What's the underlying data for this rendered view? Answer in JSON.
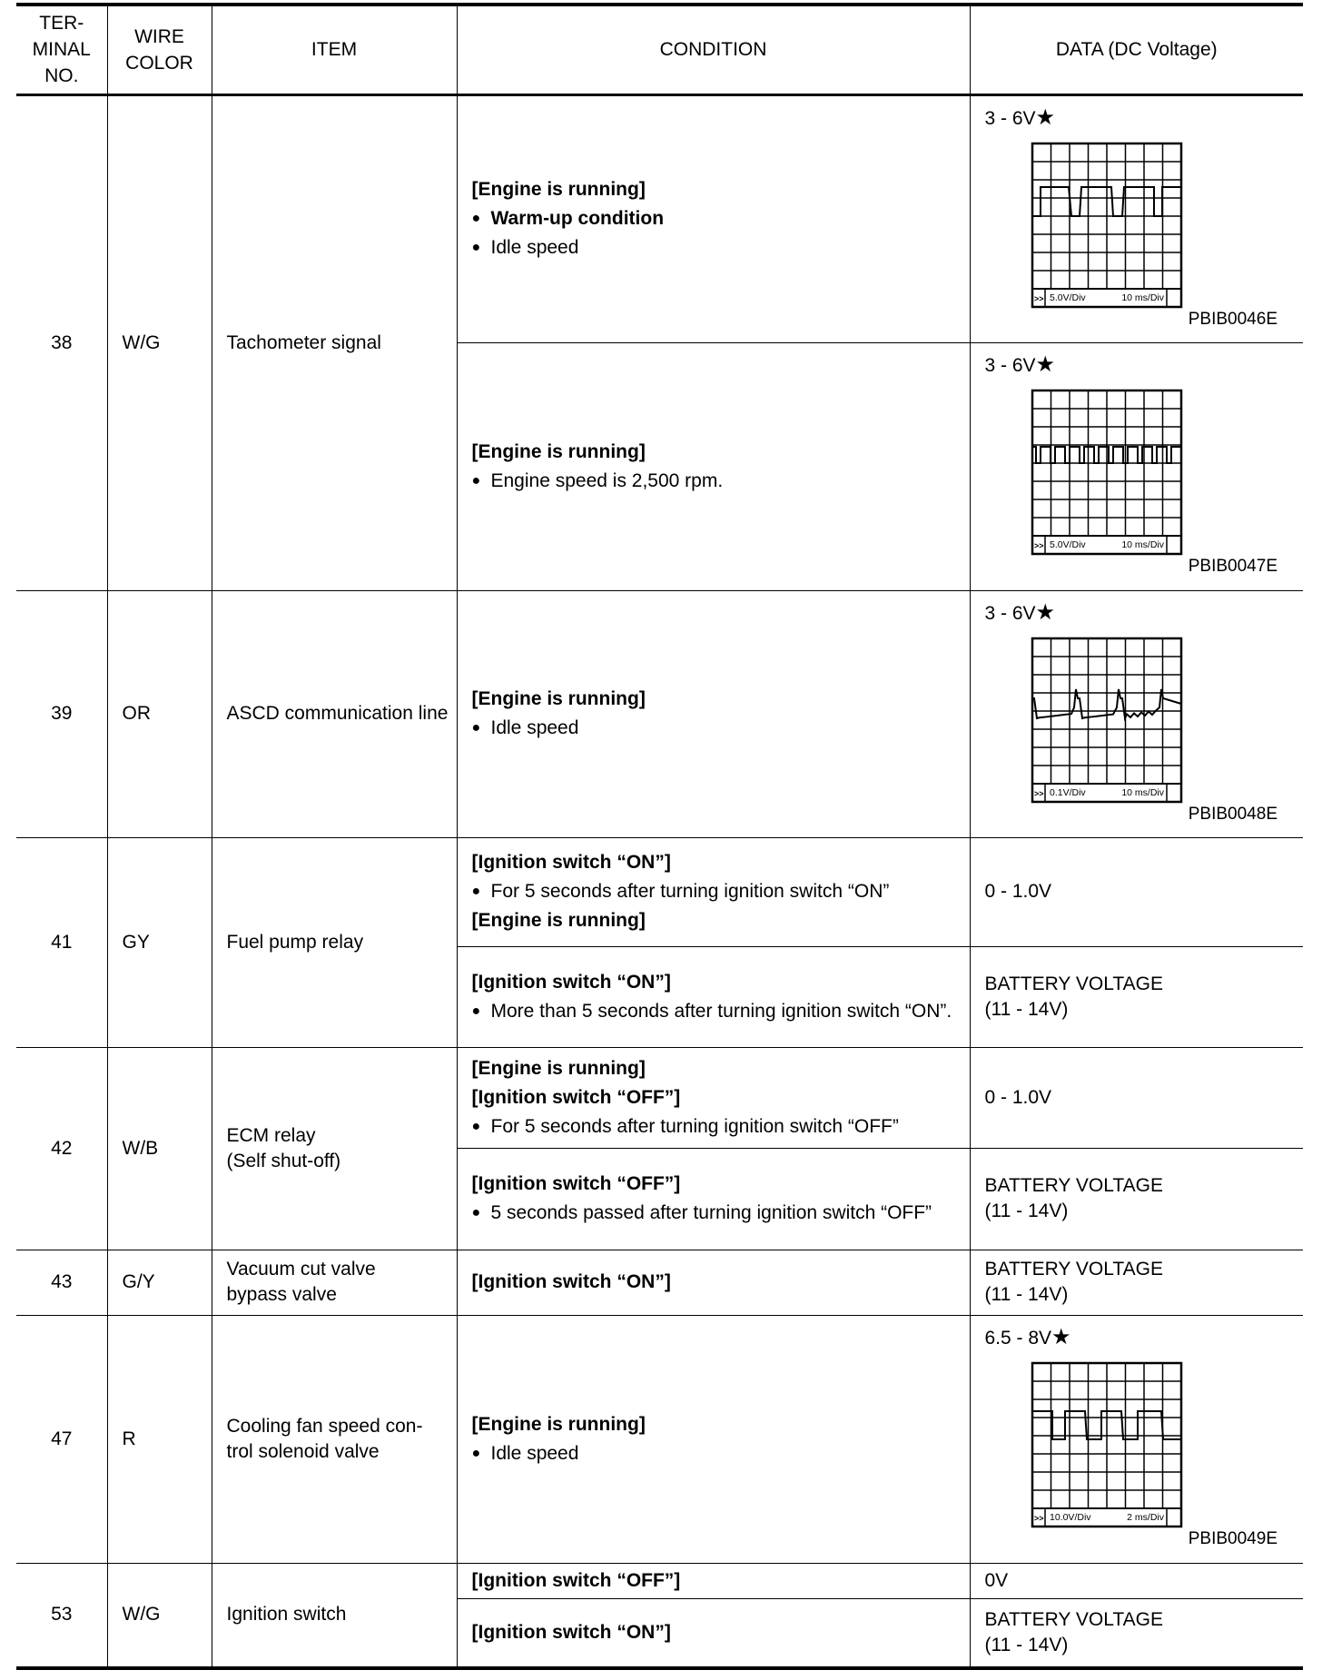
{
  "header": {
    "terminal": [
      "TER-",
      "MINAL",
      "NO."
    ],
    "wire": [
      "WIRE",
      "COLOR"
    ],
    "item": "ITEM",
    "condition": "CONDITION",
    "data": "DATA (DC Voltage)"
  },
  "rows": [
    {
      "terminal": "38",
      "wire": "W/G",
      "item": "Tachometer signal",
      "sub": [
        {
          "cond": [
            {
              "t": "h",
              "text": "[Engine is running]"
            },
            {
              "t": "bb",
              "text": "Warm-up condition"
            },
            {
              "t": "b",
              "text": "Idle speed"
            }
          ],
          "data": "3 - 6V",
          "star": "★",
          "scope": {
            "volt": "5.0V/Div",
            "time": "10 ms/Div",
            "code": "PBIB0046E",
            "wave": "square-slow"
          }
        },
        {
          "cond": [
            {
              "t": "h",
              "text": "[Engine is running]"
            },
            {
              "t": "b",
              "text": "Engine speed is 2,500 rpm."
            }
          ],
          "data": "3 - 6V",
          "star": "★",
          "scope": {
            "volt": "5.0V/Div",
            "time": "10 ms/Div",
            "code": "PBIB0047E",
            "wave": "square-fast"
          }
        }
      ]
    },
    {
      "terminal": "39",
      "wire": "OR",
      "item": "ASCD communication line",
      "sub": [
        {
          "cond": [
            {
              "t": "h",
              "text": "[Engine is running]"
            },
            {
              "t": "b",
              "text": "Idle speed"
            }
          ],
          "data": "3 - 6V",
          "star": "★",
          "scope": {
            "volt": "0.1V/Div",
            "time": "10 ms/Div",
            "code": "PBIB0048E",
            "wave": "spikes"
          }
        }
      ]
    },
    {
      "terminal": "41",
      "wire": "GY",
      "item": "Fuel pump relay",
      "sub": [
        {
          "cond": [
            {
              "t": "h",
              "text": "[Ignition switch “ON”]"
            },
            {
              "t": "b",
              "text": "For 5 seconds after turning ignition switch “ON”"
            },
            {
              "t": "h",
              "text": "[Engine is running]"
            }
          ],
          "data": "0 - 1.0V"
        },
        {
          "cond": [
            {
              "t": "h",
              "text": "[Ignition switch “ON”]"
            },
            {
              "t": "b",
              "text": "More than 5 seconds after turning ignition switch “ON”."
            }
          ],
          "data": "BATTERY VOLTAGE\n(11 - 14V)"
        }
      ]
    },
    {
      "terminal": "42",
      "wire": "W/B",
      "item": "ECM relay\n(Self shut-off)",
      "sub": [
        {
          "cond": [
            {
              "t": "h",
              "text": "[Engine is running]"
            },
            {
              "t": "h",
              "text": "[Ignition switch “OFF”]"
            },
            {
              "t": "b",
              "text": "For 5 seconds after turning ignition switch “OFF”"
            }
          ],
          "data": "0 - 1.0V"
        },
        {
          "cond": [
            {
              "t": "h",
              "text": "[Ignition switch “OFF”]"
            },
            {
              "t": "b",
              "text": "5 seconds passed after turning ignition switch “OFF”"
            }
          ],
          "data": "BATTERY VOLTAGE\n(11 - 14V)"
        }
      ]
    },
    {
      "terminal": "43",
      "wire": "G/Y",
      "item": "Vacuum cut valve\nbypass valve",
      "sub": [
        {
          "cond": [
            {
              "t": "h",
              "text": "[Ignition switch “ON”]"
            }
          ],
          "data": "BATTERY VOLTAGE\n(11 - 14V)"
        }
      ]
    },
    {
      "terminal": "47",
      "wire": "R",
      "item": "Cooling fan speed con-\ntrol solenoid valve",
      "sub": [
        {
          "cond": [
            {
              "t": "h",
              "text": "[Engine is running]"
            },
            {
              "t": "b",
              "text": "Idle speed"
            }
          ],
          "data": "6.5 - 8V",
          "star": "★",
          "scope": {
            "volt": "10.0V/Div",
            "time": "2 ms/Div",
            "code": "PBIB0049E",
            "wave": "square-mid"
          }
        }
      ]
    },
    {
      "terminal": "53",
      "wire": "W/G",
      "item": "Ignition switch",
      "sub": [
        {
          "cond": [
            {
              "t": "h",
              "text": "[Ignition switch “OFF”]"
            }
          ],
          "data": "0V"
        },
        {
          "cond": [
            {
              "t": "h",
              "text": "[Ignition switch “ON”]"
            }
          ],
          "data": "BATTERY VOLTAGE\n(11 - 14V)"
        }
      ]
    }
  ]
}
